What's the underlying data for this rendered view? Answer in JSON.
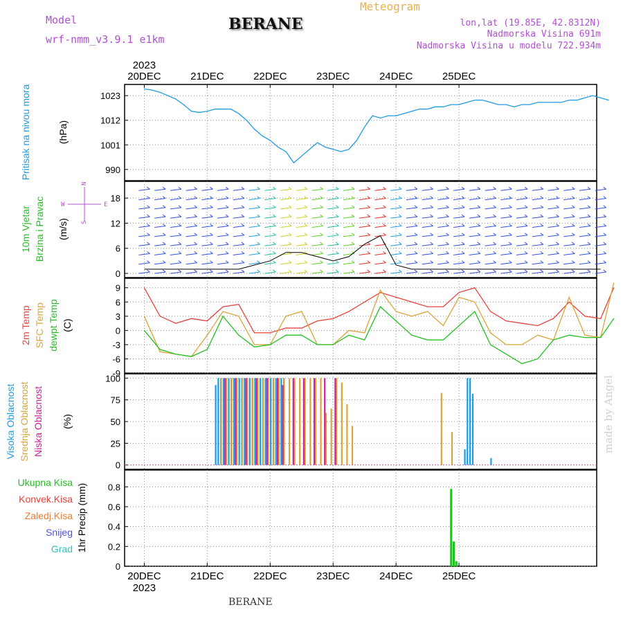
{
  "header": {
    "title": "BERANE",
    "meteogram_label": "Meteogram",
    "model_label": "Model",
    "model_name": "wrf-nmm_v3.9.1 e1km",
    "lonlat": "lon,lat (19.85E, 42.8312N)",
    "elevation": "Nadmorska Visina 691m",
    "model_elevation": "Nadmorska Visina u modelu 722.934m",
    "credit": "made by Angel",
    "footer": "BERANE"
  },
  "colors": {
    "pressure": "#1e9be0",
    "temp2m": "#e8403a",
    "sfc": "#d9a43a",
    "dewpt": "#22c022",
    "wind_label": "#22c022",
    "cloud_high": "#1e9be0",
    "cloud_mid": "#d9a43a",
    "cloud_low": "#cc2299",
    "precip_total": "#22c022",
    "precip_conv": "#e8403a",
    "precip_frozen": "#f07a30",
    "snow": "#5050e0",
    "hail": "#30c0c0",
    "title_purple": "#b050d0",
    "meteogram_orange": "#e8b050",
    "credit": "#d0d0d0"
  },
  "chart_data": [
    {
      "type": "line",
      "panel": "pressure",
      "title": "",
      "ylabel_lines": [
        "Pritisak na nivou mora",
        "(hPa)"
      ],
      "ylim": [
        985,
        1028
      ],
      "yticks": [
        990,
        1001,
        1012,
        1023
      ],
      "x_ticks_top": [
        "20DEC",
        "21DEC",
        "22DEC",
        "23DEC",
        "24DEC",
        "25DEC"
      ],
      "x_top_year": "2023",
      "grid": true,
      "x_hours": [
        0,
        3,
        6,
        9,
        12,
        15,
        18,
        21,
        24,
        27,
        30,
        33,
        36,
        39,
        42,
        45,
        48,
        51,
        54,
        57,
        60,
        63,
        66,
        69,
        72,
        75,
        78,
        81,
        84,
        87,
        90,
        93,
        96,
        99,
        102,
        105,
        108,
        111,
        114,
        117,
        120,
        123,
        126,
        129,
        132,
        135,
        138,
        141,
        144,
        147,
        150,
        153,
        156,
        159,
        162,
        165,
        168,
        171,
        174,
        177
      ],
      "values": [
        1026,
        1025.5,
        1024.5,
        1023,
        1021.5,
        1019,
        1016,
        1015.5,
        1016,
        1017,
        1017,
        1017,
        1015,
        1012,
        1008,
        1005,
        1003,
        1000,
        998,
        993,
        996,
        999,
        1002,
        1000,
        999,
        998,
        999,
        1003,
        1009,
        1014,
        1013,
        1014,
        1014,
        1015,
        1016,
        1017,
        1017,
        1018,
        1018,
        1019,
        1019,
        1020,
        1021,
        1021,
        1020,
        1019,
        1019,
        1018,
        1019,
        1019,
        1020,
        1020,
        1020,
        1020,
        1021,
        1021,
        1022,
        1023,
        1022,
        1021
      ]
    },
    {
      "type": "barbs",
      "panel": "wind",
      "ylabel_lines": [
        "10m Vjetar",
        "Brzina i Pravac",
        "(m/s)"
      ],
      "compass_labels": [
        "W",
        "E",
        "N",
        "S"
      ],
      "ylim": [
        -1,
        22
      ],
      "yticks": [
        0,
        6,
        12,
        18
      ],
      "grid": true,
      "x_hours": [
        0,
        6,
        12,
        18,
        24,
        30,
        36,
        42,
        48,
        54,
        60,
        66,
        72,
        78,
        84,
        90,
        96,
        102,
        108,
        114,
        120,
        126,
        132,
        138,
        144,
        150,
        156,
        162,
        168,
        174
      ],
      "speed": [
        1,
        1,
        1,
        1,
        1,
        1,
        1,
        2,
        3,
        5,
        5,
        4,
        3,
        4,
        7,
        9,
        2,
        1,
        1,
        1,
        1,
        1,
        1,
        1,
        1,
        1,
        1,
        1,
        1,
        1
      ]
    },
    {
      "type": "line",
      "panel": "temperature",
      "ylabel_lines": [
        "2m Temp",
        "SFC Temp",
        "dewpt Temp",
        "(C)"
      ],
      "ylim": [
        -9,
        11
      ],
      "yticks": [
        -9,
        -6,
        -3,
        0,
        3,
        6,
        9
      ],
      "grid": true,
      "x": [
        0,
        6,
        12,
        18,
        24,
        30,
        36,
        42,
        48,
        54,
        60,
        66,
        72,
        78,
        84,
        90,
        96,
        102,
        108,
        114,
        120,
        126,
        132,
        138,
        144,
        150,
        156,
        162,
        168,
        174,
        179
      ],
      "series": [
        {
          "name": "2m Temp",
          "values": [
            9,
            3,
            1.5,
            2.5,
            2,
            5,
            5.5,
            -0.5,
            -0.5,
            0.5,
            0.5,
            2,
            2.5,
            4,
            6,
            8,
            7,
            6,
            5,
            5,
            8,
            9,
            4,
            2,
            1.5,
            1,
            2.5,
            6,
            3,
            2.5,
            9
          ]
        },
        {
          "name": "SFC Temp",
          "values": [
            3,
            -4.5,
            -5,
            -5.5,
            -1,
            4,
            3,
            -3,
            -3,
            3,
            4,
            -3,
            -3,
            0,
            -0.5,
            8.5,
            4,
            3,
            4,
            1,
            7,
            6,
            -0.5,
            -3,
            -3,
            -1,
            -2,
            7,
            -1,
            -1.5,
            10
          ]
        },
        {
          "name": "dewpt Temp",
          "values": [
            0,
            -4,
            -5,
            -5.5,
            -4,
            3,
            -1,
            -3.5,
            -3,
            -1,
            -1,
            -3,
            -3,
            -1,
            -2,
            5,
            2,
            -1,
            -2,
            -2,
            1,
            4,
            -3,
            -5,
            -7,
            -6,
            -2,
            -1,
            -1.5,
            -1.5,
            2.5
          ]
        }
      ]
    },
    {
      "type": "bar",
      "panel": "clouds",
      "ylabel_lines": [
        "Visoka Oblacnost",
        "Srednja Oblacnost",
        "Niska Oblacnost",
        "(%)"
      ],
      "ylim": [
        -5,
        105
      ],
      "yticks": [
        0,
        25,
        50,
        75,
        100
      ],
      "grid": true,
      "series": [
        {
          "name": "Visoka Oblacnost",
          "x": [
            28,
            29,
            30,
            31,
            32,
            33,
            34,
            35,
            36,
            37,
            38,
            39,
            40,
            41,
            42,
            43,
            44,
            45,
            46,
            47,
            48,
            49,
            50,
            51,
            52,
            53,
            54,
            123,
            124,
            125,
            126,
            133
          ],
          "values": [
            92,
            100,
            100,
            100,
            100,
            100,
            100,
            100,
            100,
            100,
            100,
            100,
            100,
            100,
            100,
            100,
            100,
            100,
            100,
            100,
            100,
            100,
            100,
            100,
            100,
            100,
            100,
            18,
            100,
            100,
            82,
            8
          ]
        },
        {
          "name": "Srednja Oblacnost",
          "x": [
            29,
            31,
            33,
            35,
            37,
            39,
            41,
            43,
            45,
            47,
            49,
            51,
            53,
            55,
            57,
            59,
            61,
            63,
            65,
            67,
            69,
            71,
            73,
            75,
            77,
            79,
            113,
            117
          ],
          "values": [
            100,
            100,
            100,
            100,
            100,
            100,
            100,
            100,
            100,
            100,
            100,
            100,
            100,
            100,
            100,
            100,
            100,
            100,
            100,
            100,
            60,
            65,
            100,
            95,
            70,
            45,
            83,
            38
          ]
        },
        {
          "name": "Niska Oblacnost",
          "x": [
            30,
            34,
            38,
            42,
            46,
            50,
            52,
            56,
            60,
            64,
            68,
            72
          ],
          "values": [
            100,
            100,
            100,
            100,
            100,
            100,
            92,
            100,
            100,
            100,
            100,
            100
          ]
        }
      ]
    },
    {
      "type": "bar",
      "panel": "precip",
      "ylabel_lines": [
        "1hr Precip (mm)"
      ],
      "legend": [
        "Ukupna Kisa",
        "Konvek.Kisa",
        "Zaledj.Kisa",
        "Snijeg",
        "Grad"
      ],
      "ylim": [
        0,
        0.97
      ],
      "yticks": [
        0,
        0.2,
        0.4,
        0.6,
        0.8
      ],
      "ytick_labels": [
        "0",
        "0.2",
        "0.4",
        "0.6",
        "0.8"
      ],
      "x_ticks_bottom": [
        "20DEC",
        "21DEC",
        "22DEC",
        "23DEC",
        "24DEC",
        "25DEC"
      ],
      "x_bottom_year": "2023",
      "grid": true,
      "x": [
        117,
        118,
        119
      ],
      "values": [
        0.78,
        0.25,
        0.05
      ]
    }
  ]
}
